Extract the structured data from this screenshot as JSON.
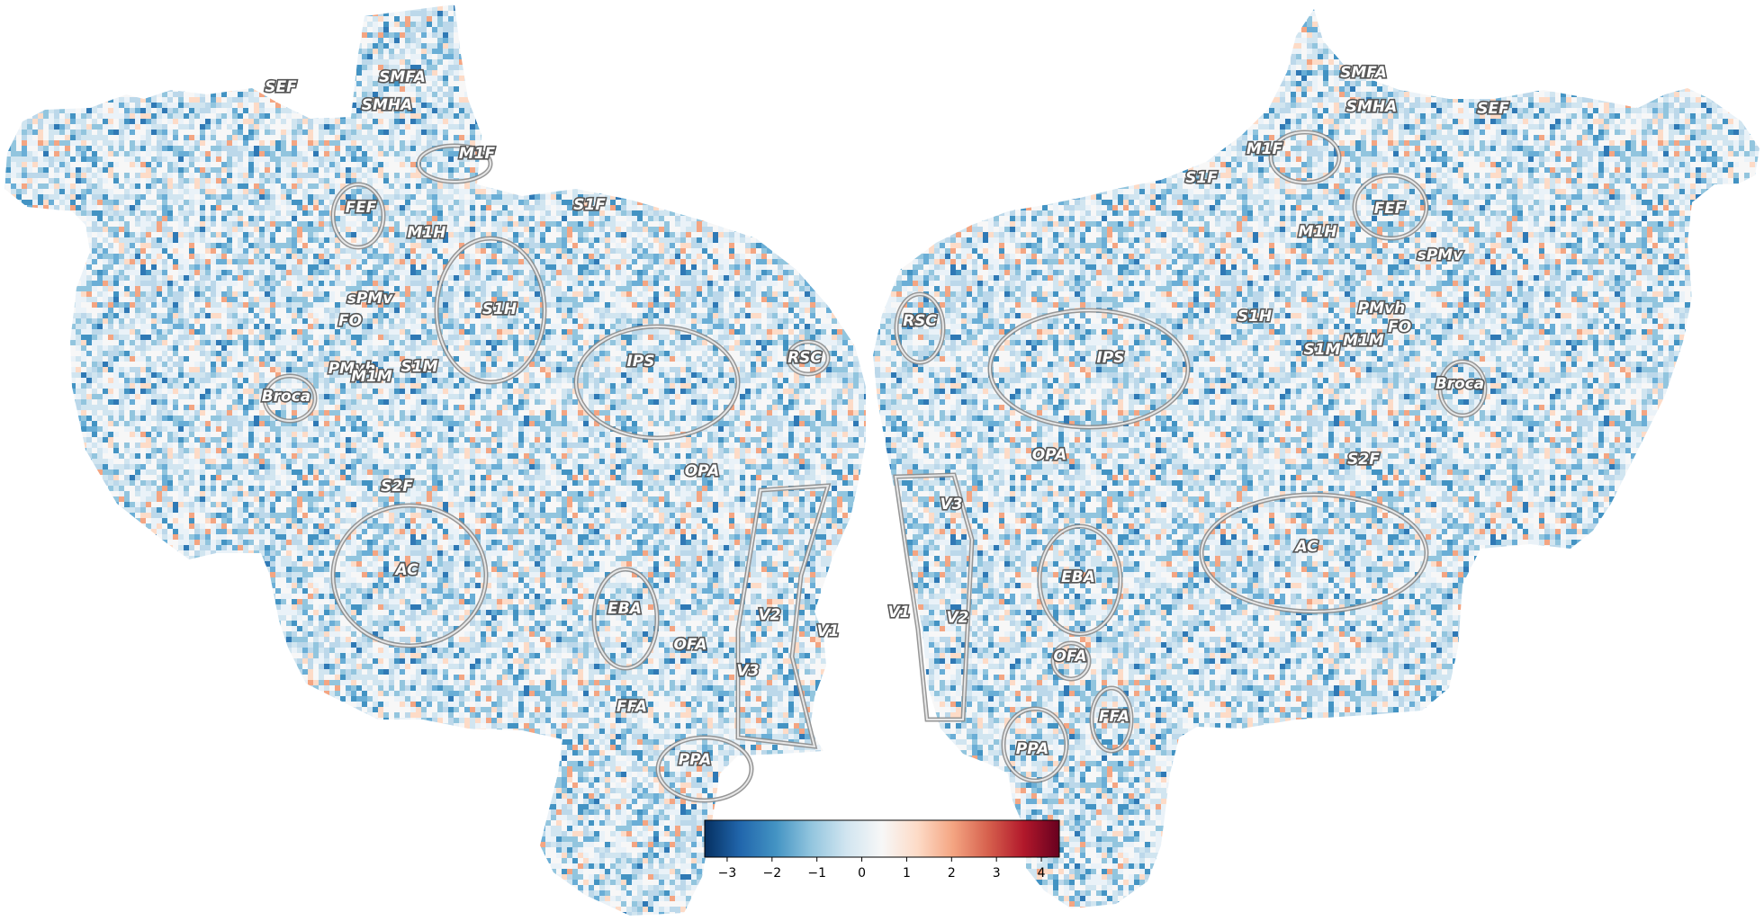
{
  "figure": {
    "title": "",
    "colormap": "RdBu_r",
    "colormap_stops": [
      "#053061",
      "#2166ac",
      "#4393c3",
      "#92c5de",
      "#d1e5f0",
      "#f7f7f7",
      "#fddbc7",
      "#f4a582",
      "#d6604d",
      "#b2182b",
      "#67001f"
    ]
  },
  "colorbar": {
    "vmin": -3.5,
    "vmax": 4.4,
    "ticks": [
      "−3",
      "−2",
      "−1",
      "0",
      "1",
      "2",
      "3",
      "4"
    ],
    "tick_values": [
      -3,
      -2,
      -1,
      0,
      1,
      2,
      3,
      4
    ]
  },
  "hemispheres": {
    "left": {
      "rois": [
        "SEF",
        "SMFA",
        "SMHA",
        "M1F",
        "FEF",
        "S1F",
        "M1H",
        "sPMv",
        "S1H",
        "FO",
        "PMvh",
        "S1M",
        "M1M",
        "Broca",
        "IPS",
        "RSC",
        "OPA",
        "S2F",
        "AC",
        "EBA",
        "V2",
        "V1",
        "OFA",
        "V3",
        "FFA",
        "PPA"
      ]
    },
    "right": {
      "rois": [
        "SMFA",
        "SMHA",
        "SEF",
        "M1F",
        "S1F",
        "FEF",
        "M1H",
        "sPMv",
        "RSC",
        "PMvh",
        "FO",
        "S1H",
        "S1M",
        "M1M",
        "IPS",
        "Broca",
        "OPA",
        "S2F",
        "V3",
        "AC",
        "EBA",
        "V1",
        "V2",
        "OFA",
        "FFA",
        "PPA"
      ]
    }
  }
}
